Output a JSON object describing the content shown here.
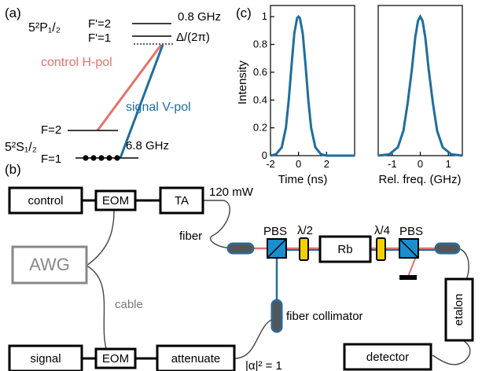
{
  "panel_labels": {
    "a": "(a)",
    "b": "(b)",
    "c": "(c)"
  },
  "levels": {
    "excited_state": "5²P₁/₂",
    "ground_state": "5²S₁/₂",
    "f_prime_2": "F'=2",
    "f_prime_1": "F'=1",
    "f_2": "F=2",
    "f_1": "F=1",
    "excited_splitting": "0.8 GHz",
    "detuning": "Δ/(2π)",
    "ground_splitting": "6.8 GHz",
    "control_label": "control H-pol",
    "signal_label": "signal V-pol"
  },
  "setup": {
    "control": "control",
    "eom_top": "EOM",
    "ta": "TA",
    "power": "120 mW",
    "fiber": "fiber",
    "awg": "AWG",
    "cable": "cable",
    "pbs_left": "PBS",
    "half_wave": "λ/2",
    "rb": "Rb",
    "quarter_wave": "λ/4",
    "pbs_right": "PBS",
    "fiber_collimator": "fiber collimator",
    "etalon": "etalon",
    "signal": "signal",
    "eom_bottom": "EOM",
    "attenuate": "attenuate",
    "mean_photon": "|α|² = 1",
    "detector": "detector"
  },
  "colors": {
    "control_beam": "#e8716b",
    "signal_beam": "#1f6e9c",
    "component_blue": "#1a8fd0",
    "component_yellow": "#f5d000",
    "collimator": "#2f6890"
  },
  "chart_data": [
    {
      "type": "line",
      "title": "",
      "xlabel": "Time (ns)",
      "ylabel": "Intensity",
      "xlim": [
        -2,
        4
      ],
      "ylim": [
        0,
        1.08
      ],
      "xticks": [
        -2,
        0,
        2
      ],
      "yticks": [
        0,
        0.2,
        0.4,
        0.6,
        0.8,
        1
      ],
      "series": [
        {
          "color": "#1f6e9c",
          "x": [
            -2,
            -1.6,
            -1.2,
            -0.9,
            -0.7,
            -0.5,
            -0.3,
            -0.1,
            0,
            0.1,
            0.3,
            0.5,
            0.7,
            0.9,
            1.2,
            1.6,
            2,
            3,
            4
          ],
          "y": [
            0,
            0.01,
            0.06,
            0.2,
            0.4,
            0.65,
            0.88,
            0.99,
            1.0,
            0.99,
            0.88,
            0.65,
            0.4,
            0.2,
            0.06,
            0.01,
            0,
            0,
            0
          ]
        }
      ]
    },
    {
      "type": "line",
      "title": "",
      "xlabel": "Rel. freq. (GHz)",
      "ylabel": "",
      "xlim": [
        -1.5,
        1.5
      ],
      "ylim": [
        0,
        1.08
      ],
      "xticks": [
        -1,
        0,
        1
      ],
      "series": [
        {
          "color": "#1f6e9c",
          "x": [
            -1.5,
            -1.1,
            -0.8,
            -0.6,
            -0.45,
            -0.3,
            -0.18,
            -0.08,
            0,
            0.08,
            0.18,
            0.3,
            0.45,
            0.6,
            0.8,
            1.1,
            1.5
          ],
          "y": [
            0,
            0.01,
            0.06,
            0.18,
            0.38,
            0.62,
            0.85,
            0.97,
            1.0,
            0.97,
            0.85,
            0.62,
            0.38,
            0.18,
            0.06,
            0.01,
            0
          ]
        }
      ]
    }
  ]
}
